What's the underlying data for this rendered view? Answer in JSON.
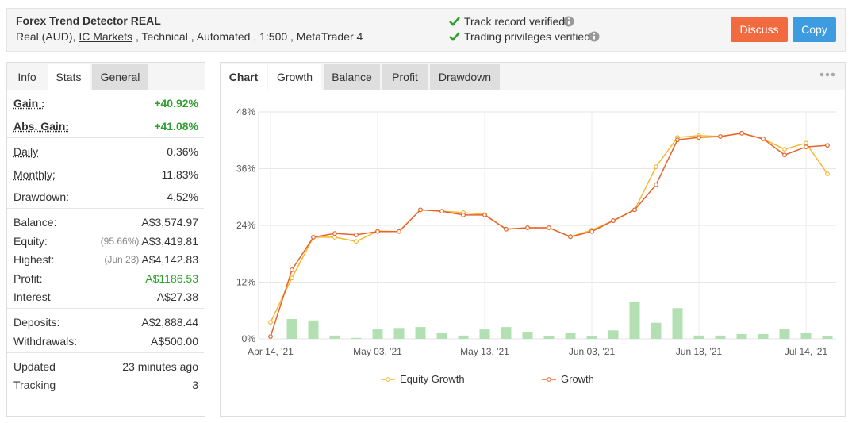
{
  "header": {
    "title": "Forex Trend Detector REAL",
    "account": "Real (AUD),",
    "broker": "IC Markets",
    "details": ", Technical , Automated , 1:500 , MetaTrader 4",
    "verified": [
      "Track record verified",
      "Trading privileges verified"
    ],
    "buttons": [
      "Discuss",
      "Copy"
    ]
  },
  "stats_panel": {
    "tabs": [
      "Info",
      "Stats",
      "General"
    ],
    "active_tab": 1,
    "groups": [
      [
        {
          "label": "Gain :",
          "value": "+40.92%",
          "color": "#2ea02e"
        },
        {
          "label": "Abs. Gain:",
          "value": "+41.08%",
          "color": "#2ea02e"
        }
      ],
      [
        {
          "label": "Daily",
          "value": "0.36%"
        },
        {
          "label": "Monthly:",
          "value": "11.83%"
        },
        {
          "label": "Drawdown:",
          "value": "4.52%"
        }
      ],
      [
        {
          "label": "Balance:",
          "value": "A$3,574.97"
        },
        {
          "label": "Equity:",
          "note": "(95.66%)",
          "value": "A$3,419.81"
        },
        {
          "label": "Highest:",
          "note": "(Jun 23)",
          "value": "A$4,142.83"
        },
        {
          "label": "Profit:",
          "value": "A$1186.53",
          "color": "#2ea02e"
        },
        {
          "label": "Interest",
          "value": "-A$27.38"
        }
      ],
      [
        {
          "label": "Deposits:",
          "value": "A$2,888.44"
        },
        {
          "label": "Withdrawals:",
          "value": "A$500.00"
        }
      ],
      [
        {
          "label": "Updated",
          "value": "23 minutes ago"
        },
        {
          "label": "Tracking",
          "value": "3"
        }
      ]
    ]
  },
  "chart_panel": {
    "heading": "Chart",
    "tabs": [
      "Growth",
      "Balance",
      "Profit",
      "Drawdown"
    ],
    "active_tab": 0
  },
  "chart": {
    "type": "line",
    "categories": [
      "Apr 14, '21",
      null,
      null,
      null,
      null,
      "May 03, '21",
      null,
      null,
      null,
      null,
      "May 13, '21",
      null,
      null,
      null,
      null,
      "Jun 03, '21",
      null,
      null,
      null,
      null,
      "Jun 18, '21",
      null,
      null,
      null,
      null,
      "Jul 14, '21",
      null
    ],
    "series": [
      {
        "name": "Equity Growth",
        "color": "#f5b82e",
        "values": [
          3.5,
          12.9,
          21.5,
          21.5,
          20.6,
          22.8,
          22.7,
          27.3,
          27.0,
          26.7,
          26.3,
          23.2,
          23.5,
          23.5,
          21.6,
          23.0,
          25.0,
          27.3,
          36.4,
          42.6,
          43.0,
          42.8,
          43.5,
          42.3,
          40.1,
          41.4,
          34.9
        ]
      },
      {
        "name": "Growth",
        "color": "#e8622c",
        "values": [
          0.5,
          14.6,
          21.5,
          22.3,
          22.0,
          22.7,
          22.7,
          27.3,
          27.0,
          26.2,
          26.2,
          23.2,
          23.5,
          23.5,
          21.6,
          22.7,
          25.0,
          27.3,
          32.6,
          42.1,
          42.6,
          42.8,
          43.5,
          42.3,
          38.9,
          40.6,
          40.92
        ]
      },
      {
        "type": "bar",
        "color": "#b3e0b3",
        "values": [
          0,
          4.2,
          3.9,
          0.7,
          0.2,
          2.0,
          2.3,
          2.5,
          1.2,
          0.7,
          2.0,
          2.5,
          1.5,
          0.5,
          1.3,
          0.5,
          1.8,
          7.9,
          3.4,
          6.5,
          0.7,
          0.7,
          1.0,
          1.0,
          2.0,
          1.3,
          0.5
        ]
      }
    ],
    "ylim": [
      0,
      48
    ],
    "yticks": [
      {
        "value": 0,
        "label": "0%"
      },
      {
        "value": 12,
        "label": "12%"
      },
      {
        "value": 24,
        "label": "24%"
      },
      {
        "value": 36,
        "label": "36%"
      },
      {
        "value": 48,
        "label": "48%"
      }
    ],
    "grid": true
  }
}
